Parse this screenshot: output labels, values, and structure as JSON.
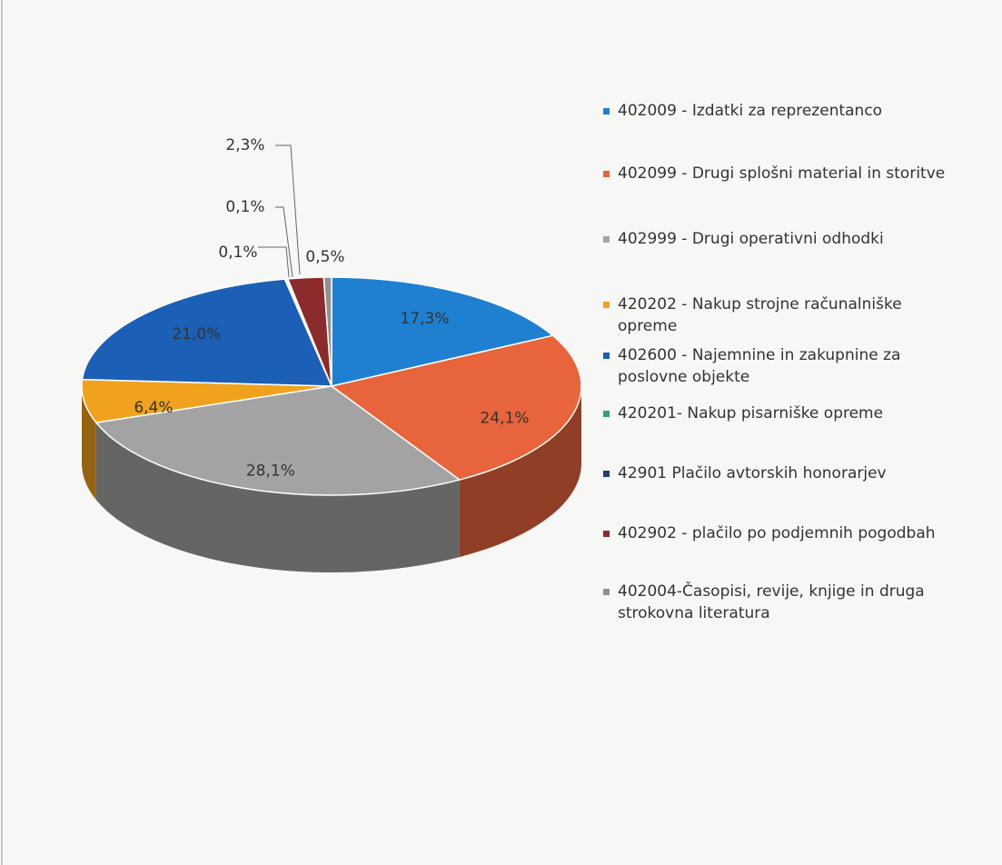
{
  "chart_data": {
    "type": "pie3d",
    "categories": [
      "402009 - Izdatki za reprezentanco",
      "402099 - Drugi splošni material in storitve",
      "402999 - Drugi operativni odhodki",
      "420202 - Nakup strojne računalniške opreme",
      "402600 - Najemnine in zakupnine za poslovne objekte",
      "420201- Nakup pisarniške opreme",
      "42901 Plačilo avtorskih honorarjev",
      "402902 - plačilo po podjemnih pogodbah",
      "402004-Časopisi, revije, knjige in druga strokovna literatura"
    ],
    "values": [
      17.3,
      24.1,
      28.1,
      6.4,
      21.0,
      0.1,
      0.1,
      2.3,
      0.5
    ],
    "value_labels": [
      "17,3%",
      "24,1%",
      "28,1%",
      "6,4%",
      "21,0%",
      "0,1%",
      "0,1%",
      "2,3%",
      "0,5%"
    ],
    "colors": [
      "#1f80d2",
      "#e8643c",
      "#a3a3a3",
      "#f0a21e",
      "#1b5fb6",
      "#3a9f78",
      "#1f3f7a",
      "#8b2b2b",
      "#8f8f8f"
    ],
    "legend": "right"
  }
}
